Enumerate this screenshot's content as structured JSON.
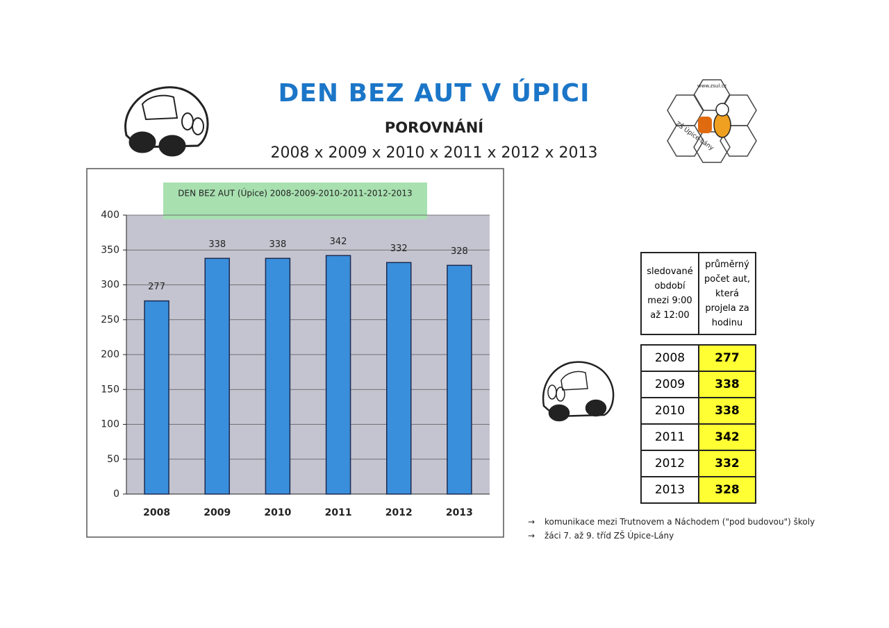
{
  "header": {
    "title": "DEN BEZ AUT V ÚPICI",
    "subtitle": "POROVNÁNÍ",
    "years": "2008 x 2009 x 2010 x 2011 x 2012 x 2013"
  },
  "logo": {
    "url": "www.zsul.cz",
    "school": "ZŠ Úpice-Lány"
  },
  "chart_data": {
    "type": "bar",
    "title": "DEN BEZ AUT (Úpice) 2008-2009-2010-2011-2012-2013",
    "categories": [
      "2008",
      "2009",
      "2010",
      "2011",
      "2012",
      "2013"
    ],
    "values": [
      277,
      338,
      338,
      342,
      332,
      328
    ],
    "color": "#3a8fdc",
    "ylim": [
      0,
      400
    ],
    "yticks": [
      0,
      50,
      100,
      150,
      200,
      250,
      300,
      350,
      400
    ],
    "grid": true
  },
  "table": {
    "header": [
      "sledované období mezi 9:00 až 12:00",
      "průměrný počet aut, která projela za hodinu"
    ],
    "rows": [
      [
        "2008",
        "277"
      ],
      [
        "2009",
        "338"
      ],
      [
        "2010",
        "338"
      ],
      [
        "2011",
        "342"
      ],
      [
        "2012",
        "332"
      ],
      [
        "2013",
        "328"
      ]
    ]
  },
  "notes": [
    "komunikace mezi Trutnovem a Náchodem (\"pod budovou\") školy",
    "žáci 7. až 9. tříd ZŠ Úpice-Lány"
  ]
}
